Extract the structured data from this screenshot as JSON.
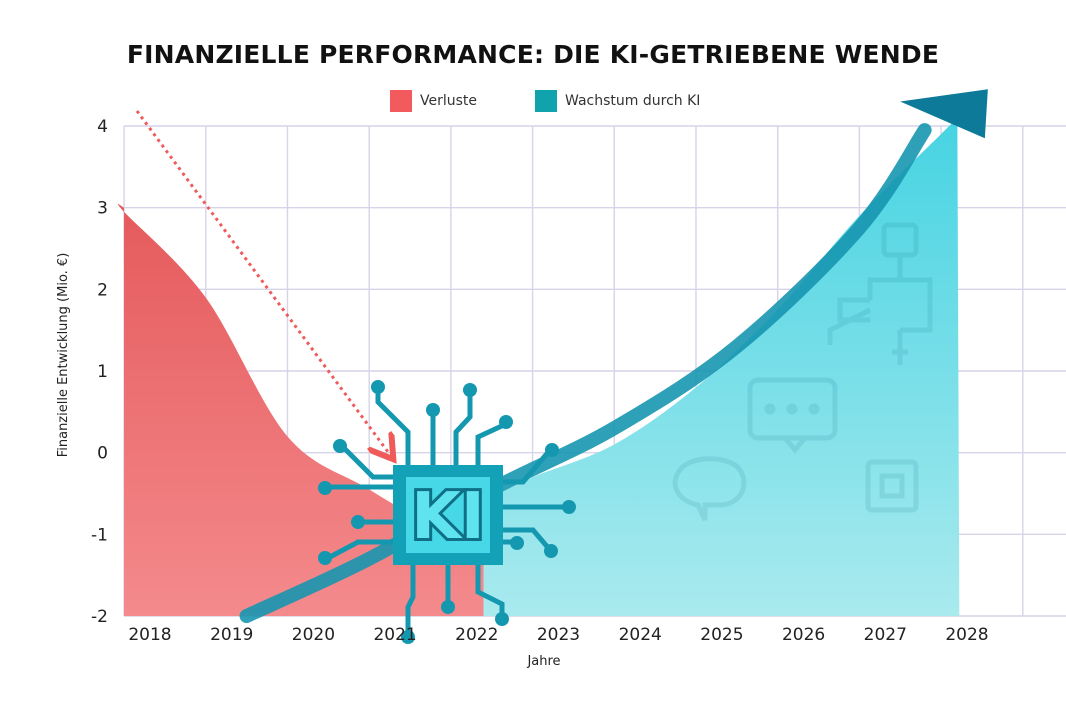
{
  "chart_data": {
    "type": "area",
    "title": "FINANZIELLE PERFORMANCE: DIE KI-GETRIEBENE WENDE",
    "xlabel": "Jahre",
    "ylabel": "Finanzielle Entwicklung (Mio. €)",
    "categories": [
      "2018",
      "2019",
      "2020",
      "2021",
      "2022",
      "2023",
      "2024",
      "2025",
      "2026",
      "2027",
      "2028"
    ],
    "y_ticks": [
      "4",
      "3",
      "2",
      "1",
      "0",
      "-1",
      "-2"
    ],
    "ylim": [
      -2,
      4
    ],
    "grid": true,
    "legend_position": "top-center",
    "series": [
      {
        "name": "Verluste",
        "color": "#e8555a",
        "x": [
          2017.7,
          2018,
          2019,
          2020,
          2021,
          2022,
          2023,
          2024
        ],
        "values": [
          3.0,
          2.95,
          1.9,
          0.2,
          -0.45,
          -1.05,
          -1.7,
          -2.0
        ]
      },
      {
        "name": "Wachstum durch KI",
        "color": "#17a2b4",
        "x": [
          2022.6,
          2023,
          2024,
          2025,
          2026,
          2027,
          2028,
          2028.2
        ],
        "values": [
          -0.5,
          -0.3,
          0.1,
          0.8,
          1.75,
          2.9,
          3.9,
          4.1
        ]
      }
    ],
    "annotations": [
      "KI"
    ]
  }
}
